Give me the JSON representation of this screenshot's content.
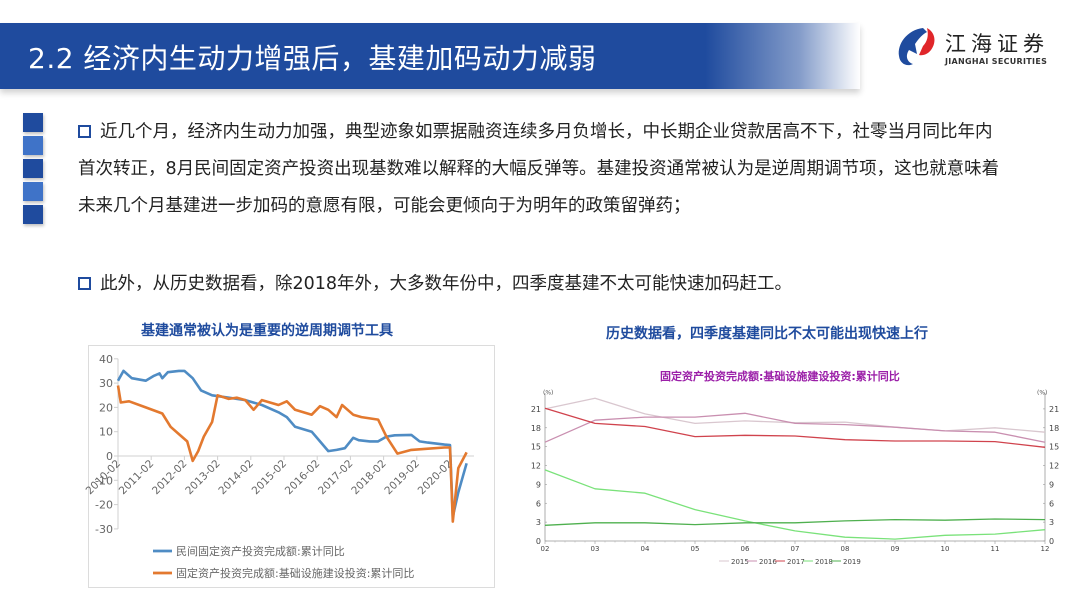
{
  "header": {
    "title": "2.2 经济内生动力增强后，基建加码动力减弱",
    "title_bg_color": "#1f4b9e"
  },
  "logo": {
    "name_cn": "江海证券",
    "name_en": "JIANGHAI SECURITIES",
    "icon": "jianghai-logo-icon",
    "colors": [
      "#1f4b9e",
      "#e0262a"
    ]
  },
  "side_blocks": {
    "colors": [
      "#1f4b9e",
      "#3f73c8",
      "#1f4b9e",
      "#3f73c8",
      "#1f4b9e"
    ]
  },
  "bullets": [
    {
      "icon": "hollow-square-bullet-icon",
      "text": "近几个月，经济内生动力加强，典型迹象如票据融资连续多月负增长，中长期企业贷款居高不下，社零当月同比年内首次转正，8月民间固定资产投资出现基数难以解释的大幅反弹等。基建投资通常被认为是逆周期调节项，这也就意味着未来几个月基建进一步加码的意愿有限，可能会更倾向于为明年的政策留弹药；"
    },
    {
      "icon": "hollow-square-bullet-icon",
      "text": "此外，从历史数据看，除2018年外，大多数年份中，四季度基建不太可能快速加码赶工。"
    }
  ],
  "chart_data": [
    {
      "type": "line",
      "title": "基建通常被认为是重要的逆周期调节工具",
      "xlabel": "",
      "ylabel": "",
      "ylim": [
        -30,
        40
      ],
      "yticks": [
        40,
        30,
        20,
        10,
        0,
        -10,
        -20,
        -30
      ],
      "xticks": [
        "2010-02",
        "2011-02",
        "2012-02",
        "2013-02",
        "2014-02",
        "2015-02",
        "2016-02",
        "2017-02",
        "2018-02",
        "2019-02",
        "2020-02"
      ],
      "grid": false,
      "legend_position": "bottom",
      "series": [
        {
          "name": "民间固定资产投资完成额:累计同比",
          "color": "#4f8cc4",
          "points": [
            [
              "2010-02",
              31
            ],
            [
              "2010-04",
              35
            ],
            [
              "2010-07",
              32
            ],
            [
              "2010-12",
              31
            ],
            [
              "2011-03",
              33
            ],
            [
              "2011-05",
              34
            ],
            [
              "2011-06",
              32
            ],
            [
              "2011-08",
              34.5
            ],
            [
              "2011-12",
              35
            ],
            [
              "2012-02",
              35
            ],
            [
              "2012-05",
              32
            ],
            [
              "2012-08",
              27
            ],
            [
              "2012-12",
              25
            ],
            [
              "2013-06",
              24
            ],
            [
              "2013-12",
              23
            ],
            [
              "2014-06",
              21
            ],
            [
              "2014-12",
              18
            ],
            [
              "2015-03",
              16
            ],
            [
              "2015-06",
              12
            ],
            [
              "2015-12",
              10
            ],
            [
              "2016-03",
              6
            ],
            [
              "2016-06",
              2
            ],
            [
              "2016-09",
              2.5
            ],
            [
              "2016-12",
              3.2
            ],
            [
              "2017-03",
              7.5
            ],
            [
              "2017-05",
              6.5
            ],
            [
              "2017-09",
              6
            ],
            [
              "2017-12",
              6
            ],
            [
              "2018-03",
              8
            ],
            [
              "2018-06",
              8.5
            ],
            [
              "2018-12",
              8.7
            ],
            [
              "2019-03",
              6
            ],
            [
              "2019-06",
              5.5
            ],
            [
              "2019-12",
              4.7
            ],
            [
              "2020-02",
              4.5
            ],
            [
              "2020-03",
              -25
            ],
            [
              "2020-05",
              -15
            ],
            [
              "2020-08",
              -3
            ]
          ]
        },
        {
          "name": "固定资产投资完成额:基础设施建设投资:累计同比",
          "color": "#e3792f",
          "points": [
            [
              "2010-02",
              29
            ],
            [
              "2010-03",
              22
            ],
            [
              "2010-06",
              22.5
            ],
            [
              "2010-12",
              20
            ],
            [
              "2011-06",
              17.5
            ],
            [
              "2011-09",
              12
            ],
            [
              "2011-12",
              9
            ],
            [
              "2012-03",
              6
            ],
            [
              "2012-05",
              -2
            ],
            [
              "2012-07",
              2
            ],
            [
              "2012-09",
              8
            ],
            [
              "2012-12",
              14
            ],
            [
              "2013-02",
              25
            ],
            [
              "2013-06",
              23.5
            ],
            [
              "2013-09",
              24
            ],
            [
              "2013-12",
              23
            ],
            [
              "2014-03",
              19
            ],
            [
              "2014-06",
              23
            ],
            [
              "2014-12",
              21
            ],
            [
              "2015-03",
              22.5
            ],
            [
              "2015-06",
              19
            ],
            [
              "2015-12",
              17
            ],
            [
              "2016-03",
              20.5
            ],
            [
              "2016-06",
              19
            ],
            [
              "2016-09",
              16
            ],
            [
              "2016-11",
              21
            ],
            [
              "2017-03",
              17
            ],
            [
              "2017-06",
              16
            ],
            [
              "2017-12",
              15
            ],
            [
              "2018-03",
              8
            ],
            [
              "2018-07",
              1
            ],
            [
              "2018-12",
              2.5
            ],
            [
              "2019-06",
              3
            ],
            [
              "2019-12",
              3.5
            ],
            [
              "2020-02",
              3.5
            ],
            [
              "2020-03",
              -27
            ],
            [
              "2020-05",
              -5
            ],
            [
              "2020-08",
              1.5
            ]
          ]
        }
      ]
    },
    {
      "type": "line",
      "title": "历史数据看，四季度基建同比不太可能出现快速上行",
      "subtitle": "固定资产投资完成额:基础设施建设投资:累计同比",
      "xlabel": "",
      "ylabel": "(%)",
      "ylabel_right": "(%)",
      "ylim": [
        0,
        24
      ],
      "yticks": [
        0,
        3,
        6,
        9,
        12,
        15,
        18,
        21
      ],
      "categories": [
        "02",
        "03",
        "04",
        "05",
        "06",
        "07",
        "08",
        "09",
        "10",
        "11",
        "12"
      ],
      "grid": false,
      "legend_position": "bottom",
      "series": [
        {
          "name": "2015",
          "color": "#d9c7cf",
          "values": [
            21.0,
            22.7,
            20.2,
            18.7,
            19.1,
            18.8,
            18.9,
            18.1,
            17.5,
            18.0,
            17.3
          ]
        },
        {
          "name": "2016",
          "color": "#c98fb0",
          "values": [
            15.7,
            19.2,
            19.7,
            19.7,
            20.3,
            18.7,
            18.5,
            18.1,
            17.5,
            17.3,
            15.7
          ]
        },
        {
          "name": "2017",
          "color": "#d0434d",
          "values": [
            21.1,
            18.7,
            18.2,
            16.6,
            16.8,
            16.7,
            16.1,
            15.9,
            15.9,
            15.8,
            14.9
          ]
        },
        {
          "name": "2018",
          "color": "#7ae27a",
          "values": [
            11.3,
            8.3,
            7.6,
            5.0,
            3.2,
            1.6,
            0.6,
            0.3,
            0.9,
            1.1,
            1.8
          ]
        },
        {
          "name": "2019",
          "color": "#4fb04f",
          "values": [
            2.5,
            2.9,
            2.9,
            2.6,
            2.9,
            2.9,
            3.2,
            3.4,
            3.3,
            3.5,
            3.4
          ]
        }
      ]
    }
  ]
}
